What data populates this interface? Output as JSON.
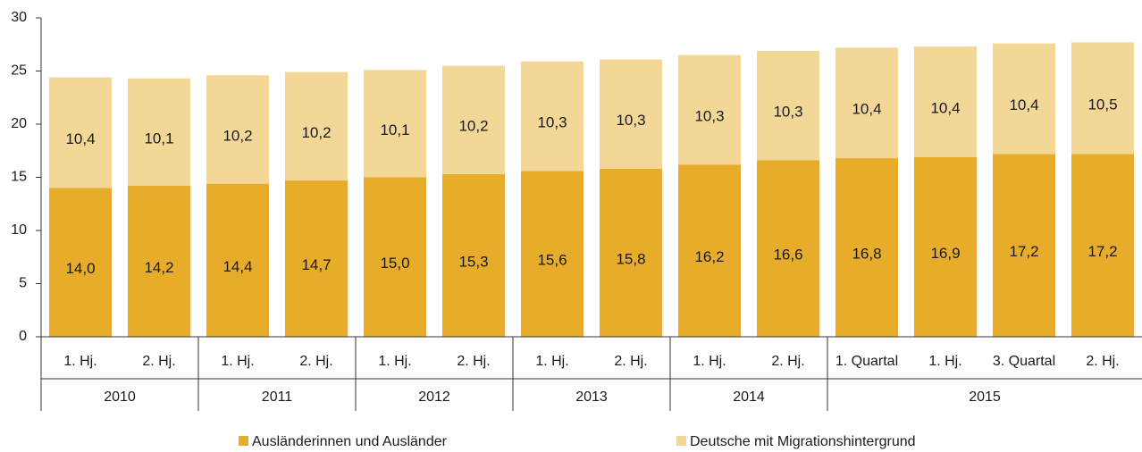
{
  "chart_data": {
    "type": "stacked_bar",
    "category_groups": [
      {
        "label": "2010",
        "categories": [
          "1. Hj.",
          "2. Hj."
        ]
      },
      {
        "label": "2011",
        "categories": [
          "1. Hj.",
          "2. Hj."
        ]
      },
      {
        "label": "2012",
        "categories": [
          "1. Hj.",
          "2. Hj."
        ]
      },
      {
        "label": "2013",
        "categories": [
          "1. Hj.",
          "2. Hj."
        ]
      },
      {
        "label": "2014",
        "categories": [
          "1. Hj.",
          "2. Hj."
        ]
      },
      {
        "label": "2015",
        "categories": [
          "1. Quartal",
          "1. Hj.",
          "3. Quartal",
          "2. Hj."
        ]
      }
    ],
    "series": [
      {
        "name": "Ausländerinnen und Ausländer",
        "color": "#e8ac2b",
        "values": [
          14.0,
          14.2,
          14.4,
          14.7,
          15.0,
          15.3,
          15.6,
          15.8,
          16.2,
          16.6,
          16.8,
          16.9,
          17.2,
          17.2
        ],
        "value_labels": [
          "14,0",
          "14,2",
          "14,4",
          "14,7",
          "15,0",
          "15,3",
          "15,6",
          "15,8",
          "16,2",
          "16,6",
          "16,8",
          "16,9",
          "17,2",
          "17,2"
        ]
      },
      {
        "name": "Deutsche mit Migrationshintergrund",
        "color": "#f3d796",
        "values": [
          10.4,
          10.1,
          10.2,
          10.2,
          10.1,
          10.2,
          10.3,
          10.3,
          10.3,
          10.3,
          10.4,
          10.4,
          10.4,
          10.5
        ],
        "value_labels": [
          "10,4",
          "10,1",
          "10,2",
          "10,2",
          "10,1",
          "10,2",
          "10,3",
          "10,3",
          "10,3",
          "10,3",
          "10,4",
          "10,4",
          "10,4",
          "10,5"
        ]
      }
    ],
    "ylim": [
      0,
      30
    ],
    "yticks": [
      0,
      5,
      10,
      15,
      20,
      25,
      30
    ],
    "grid": false,
    "legend": "bottom"
  }
}
